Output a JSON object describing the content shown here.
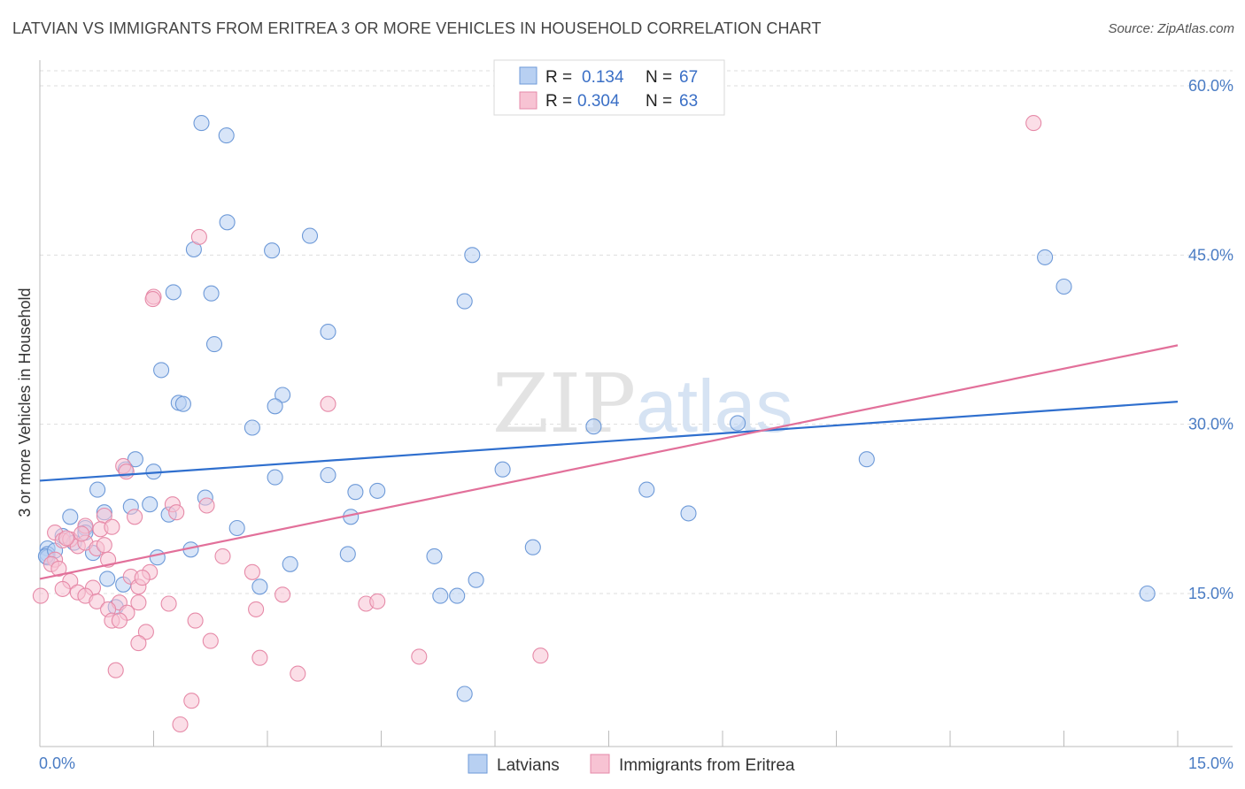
{
  "title": "LATVIAN VS IMMIGRANTS FROM ERITREA 3 OR MORE VEHICLES IN HOUSEHOLD CORRELATION CHART",
  "source": "Source: ZipAtlas.com",
  "watermark": {
    "zip": "ZIP",
    "atlas": "atlas"
  },
  "colors": {
    "blue_fill": "#b8d0f2",
    "blue_stroke": "#6e9ad8",
    "blue_line": "#2f6fce",
    "pink_fill": "#f7c3d3",
    "pink_stroke": "#e68aa8",
    "pink_line": "#e2709a",
    "grid": "#dddddd",
    "axis_tick_text": "#4a7cc4"
  },
  "legend_box": {
    "rows": [
      {
        "r_label": "R =",
        "r_value": "0.134",
        "n_label": "N =",
        "n_value": "67",
        "color": "blue"
      },
      {
        "r_label": "R =",
        "r_value": "0.304",
        "n_label": "N =",
        "n_value": "63",
        "color": "pink"
      }
    ]
  },
  "bottom_legend": [
    {
      "label": "Latvians",
      "color": "blue"
    },
    {
      "label": "Immigrants from Eritrea",
      "color": "pink"
    }
  ],
  "chart_data": {
    "type": "scatter",
    "title": "LATVIAN VS IMMIGRANTS FROM ERITREA 3 OR MORE VEHICLES IN HOUSEHOLD CORRELATION CHART",
    "xlabel": "",
    "ylabel": "3 or more Vehicles in Household",
    "xlim": [
      0,
      15
    ],
    "ylim": [
      0,
      61
    ],
    "x_tick_labels": [
      {
        "value": 0,
        "label": "0.0%"
      },
      {
        "value": 15,
        "label": "15.0%"
      }
    ],
    "y_tick_labels": [
      {
        "value": 15,
        "label": "15.0%"
      },
      {
        "value": 30,
        "label": "30.0%"
      },
      {
        "value": 45,
        "label": "45.0%"
      },
      {
        "value": 60,
        "label": "60.0%"
      }
    ],
    "y_gridlines": [
      15,
      30,
      45,
      60
    ],
    "x_minor_ticks": [
      1.5,
      3.0,
      4.5,
      6.0,
      7.5,
      9.0,
      10.5,
      12.0,
      13.5,
      15.0
    ],
    "grid": true,
    "legend_position": "top-center",
    "series": [
      {
        "name": "Latvians",
        "color": "blue",
        "trendline": [
          [
            0,
            25.0
          ],
          [
            15,
            32.0
          ]
        ],
        "points": [
          [
            2.13,
            56.7
          ],
          [
            2.46,
            55.6
          ],
          [
            2.47,
            47.9
          ],
          [
            3.56,
            46.7
          ],
          [
            2.03,
            45.5
          ],
          [
            3.06,
            45.4
          ],
          [
            5.7,
            45.0
          ],
          [
            13.25,
            44.8
          ],
          [
            13.5,
            42.2
          ],
          [
            1.76,
            41.7
          ],
          [
            2.26,
            41.6
          ],
          [
            5.6,
            40.9
          ],
          [
            3.8,
            38.2
          ],
          [
            2.3,
            37.1
          ],
          [
            1.6,
            34.8
          ],
          [
            3.2,
            32.6
          ],
          [
            1.83,
            31.9
          ],
          [
            1.89,
            31.8
          ],
          [
            3.1,
            31.6
          ],
          [
            2.8,
            29.7
          ],
          [
            7.3,
            29.8
          ],
          [
            9.2,
            30.1
          ],
          [
            10.9,
            26.9
          ],
          [
            1.26,
            26.9
          ],
          [
            1.13,
            26.0
          ],
          [
            1.5,
            25.8
          ],
          [
            3.1,
            25.3
          ],
          [
            3.8,
            25.5
          ],
          [
            6.1,
            26.0
          ],
          [
            0.76,
            24.2
          ],
          [
            4.16,
            24.0
          ],
          [
            4.45,
            24.1
          ],
          [
            8.0,
            24.2
          ],
          [
            2.18,
            23.5
          ],
          [
            1.2,
            22.7
          ],
          [
            1.45,
            22.9
          ],
          [
            0.85,
            22.2
          ],
          [
            1.7,
            22.0
          ],
          [
            8.55,
            22.1
          ],
          [
            4.1,
            21.8
          ],
          [
            0.4,
            21.8
          ],
          [
            2.6,
            20.8
          ],
          [
            0.6,
            20.8
          ],
          [
            0.3,
            20.1
          ],
          [
            0.6,
            20.4
          ],
          [
            0.45,
            19.5
          ],
          [
            0.1,
            19.0
          ],
          [
            0.1,
            18.5
          ],
          [
            0.1,
            18.2
          ],
          [
            0.7,
            18.6
          ],
          [
            1.55,
            18.2
          ],
          [
            1.99,
            18.9
          ],
          [
            4.06,
            18.5
          ],
          [
            5.2,
            18.3
          ],
          [
            6.5,
            19.1
          ],
          [
            3.3,
            17.6
          ],
          [
            0.89,
            16.3
          ],
          [
            1.1,
            15.8
          ],
          [
            2.9,
            15.6
          ],
          [
            5.75,
            16.2
          ],
          [
            5.28,
            14.8
          ],
          [
            5.5,
            14.8
          ],
          [
            1.0,
            13.8
          ],
          [
            14.6,
            15.0
          ],
          [
            5.6,
            6.1
          ],
          [
            0.08,
            18.3
          ],
          [
            0.2,
            18.8
          ]
        ]
      },
      {
        "name": "Immigrants from Eritrea",
        "color": "pink",
        "trendline": [
          [
            0,
            16.3
          ],
          [
            15,
            37.0
          ]
        ],
        "points": [
          [
            13.1,
            56.7
          ],
          [
            2.1,
            46.6
          ],
          [
            1.5,
            41.3
          ],
          [
            1.49,
            41.1
          ],
          [
            3.8,
            31.8
          ],
          [
            1.1,
            26.3
          ],
          [
            1.14,
            25.8
          ],
          [
            2.2,
            22.8
          ],
          [
            1.25,
            21.8
          ],
          [
            1.75,
            22.9
          ],
          [
            1.8,
            22.2
          ],
          [
            0.85,
            21.9
          ],
          [
            0.6,
            21.0
          ],
          [
            0.8,
            20.7
          ],
          [
            0.95,
            20.9
          ],
          [
            0.2,
            20.4
          ],
          [
            0.3,
            19.7
          ],
          [
            0.4,
            19.8
          ],
          [
            0.5,
            19.2
          ],
          [
            0.6,
            19.5
          ],
          [
            0.75,
            19.0
          ],
          [
            0.85,
            19.3
          ],
          [
            0.2,
            18.0
          ],
          [
            0.15,
            17.6
          ],
          [
            0.25,
            17.2
          ],
          [
            2.41,
            18.3
          ],
          [
            1.45,
            16.9
          ],
          [
            2.8,
            16.9
          ],
          [
            0.4,
            16.1
          ],
          [
            0.7,
            15.5
          ],
          [
            1.2,
            16.5
          ],
          [
            1.3,
            15.6
          ],
          [
            0.3,
            15.4
          ],
          [
            0.5,
            15.1
          ],
          [
            0.01,
            14.8
          ],
          [
            3.2,
            14.9
          ],
          [
            0.6,
            14.8
          ],
          [
            0.75,
            14.3
          ],
          [
            1.05,
            14.2
          ],
          [
            1.3,
            14.2
          ],
          [
            0.9,
            13.6
          ],
          [
            1.15,
            13.3
          ],
          [
            1.7,
            14.1
          ],
          [
            2.85,
            13.6
          ],
          [
            4.3,
            14.1
          ],
          [
            4.45,
            14.3
          ],
          [
            0.95,
            12.6
          ],
          [
            1.05,
            12.6
          ],
          [
            2.05,
            12.6
          ],
          [
            1.4,
            11.6
          ],
          [
            2.25,
            10.8
          ],
          [
            1.3,
            10.6
          ],
          [
            2.9,
            9.3
          ],
          [
            5.0,
            9.4
          ],
          [
            6.6,
            9.5
          ],
          [
            1.0,
            8.2
          ],
          [
            3.4,
            7.9
          ],
          [
            2.0,
            5.5
          ],
          [
            1.85,
            3.4
          ],
          [
            1.35,
            16.4
          ],
          [
            0.9,
            18.0
          ],
          [
            0.55,
            20.3
          ],
          [
            0.35,
            19.9
          ]
        ]
      }
    ]
  }
}
